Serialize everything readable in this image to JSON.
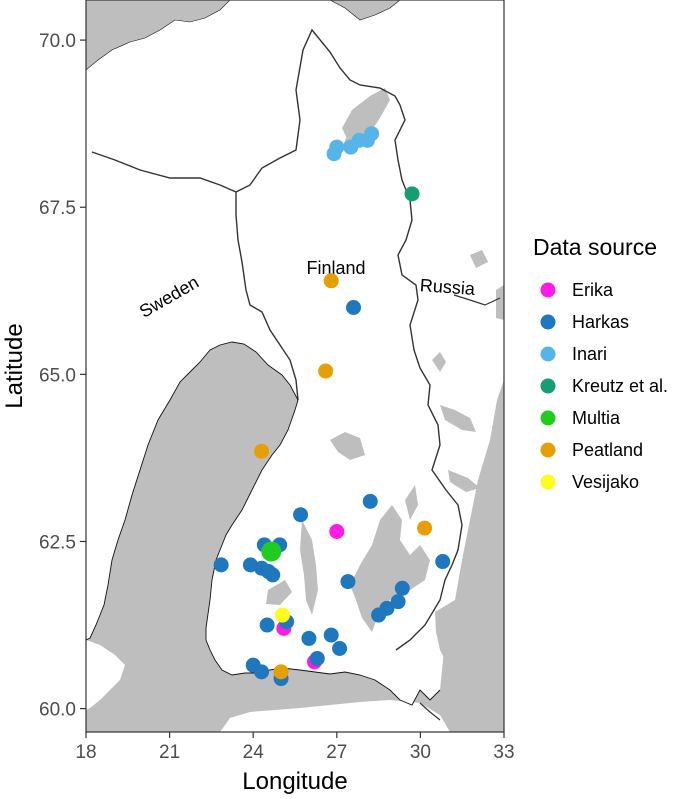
{
  "map": {
    "x_axis": {
      "title": "Longitude",
      "ticks": [
        18,
        21,
        24,
        27,
        30,
        33
      ],
      "range": [
        18,
        33
      ]
    },
    "y_axis": {
      "title": "Latitude",
      "ticks": [
        60.0,
        62.5,
        65.0,
        67.5,
        70.0
      ],
      "tick_labels": [
        "60.0",
        "62.5",
        "65.0",
        "67.5",
        "70.0"
      ],
      "range": [
        59.65,
        70.6
      ]
    },
    "place_labels": [
      {
        "text": "Finland"
      },
      {
        "text": "Sweden"
      },
      {
        "text": "Russia"
      }
    ],
    "colors": {
      "land": "#ffffff",
      "sea": "#bebebe",
      "border": "#333333"
    }
  },
  "legend": {
    "title": "Data source",
    "placement": "right",
    "items": [
      {
        "label": "Erika",
        "color": "#ff1ce6"
      },
      {
        "label": "Harkas",
        "color": "#1f77bd"
      },
      {
        "label": "Inari",
        "color": "#57b4e9"
      },
      {
        "label": "Kreutz et al.",
        "color": "#159e73"
      },
      {
        "label": "Multia",
        "color": "#20cc20"
      },
      {
        "label": "Peatland",
        "color": "#e69f00"
      },
      {
        "label": "Vesijako",
        "color": "#fdfd1d"
      }
    ]
  },
  "chart_data": {
    "type": "scatter",
    "xlabel": "Longitude",
    "ylabel": "Latitude",
    "xlim": [
      18,
      33
    ],
    "ylim": [
      59.65,
      70.6
    ],
    "grid": false,
    "legend_placement": "right",
    "series": [
      {
        "name": "Erika",
        "color": "#ff1ce6",
        "points": [
          [
            27.0,
            62.65
          ],
          [
            25.1,
            61.2
          ],
          [
            26.2,
            60.7
          ]
        ]
      },
      {
        "name": "Harkas",
        "color": "#1f77bd",
        "points": [
          [
            27.6,
            66.0
          ],
          [
            25.7,
            62.9
          ],
          [
            28.2,
            63.1
          ],
          [
            24.4,
            62.45
          ],
          [
            24.95,
            62.45
          ],
          [
            24.3,
            62.1
          ],
          [
            24.55,
            62.05
          ],
          [
            24.7,
            62.0
          ],
          [
            23.9,
            62.15
          ],
          [
            22.85,
            62.15
          ],
          [
            27.4,
            61.9
          ],
          [
            30.8,
            62.2
          ],
          [
            29.35,
            61.8
          ],
          [
            29.2,
            61.6
          ],
          [
            28.8,
            61.5
          ],
          [
            28.5,
            61.4
          ],
          [
            24.5,
            61.25
          ],
          [
            25.2,
            61.3
          ],
          [
            26.8,
            61.1
          ],
          [
            26.0,
            61.05
          ],
          [
            27.1,
            60.9
          ],
          [
            26.3,
            60.75
          ],
          [
            24.0,
            60.65
          ],
          [
            24.3,
            60.55
          ],
          [
            25.0,
            60.45
          ]
        ]
      },
      {
        "name": "Inari",
        "color": "#57b4e9",
        "points": [
          [
            26.9,
            68.3
          ],
          [
            27.0,
            68.4
          ],
          [
            27.5,
            68.4
          ],
          [
            27.8,
            68.5
          ],
          [
            28.1,
            68.5
          ],
          [
            28.25,
            68.6
          ]
        ]
      },
      {
        "name": "Kreutz et al.",
        "color": "#159e73",
        "points": [
          [
            29.7,
            67.7
          ]
        ]
      },
      {
        "name": "Multia",
        "color": "#20cc20",
        "points": [
          [
            24.65,
            62.35
          ]
        ]
      },
      {
        "name": "Peatland",
        "color": "#e69f00",
        "points": [
          [
            26.8,
            66.4
          ],
          [
            26.6,
            65.05
          ],
          [
            24.3,
            63.85
          ],
          [
            30.15,
            62.7
          ],
          [
            25.0,
            60.55
          ]
        ]
      },
      {
        "name": "Vesijako",
        "color": "#fdfd1d",
        "points": [
          [
            25.05,
            61.4
          ]
        ]
      }
    ]
  }
}
